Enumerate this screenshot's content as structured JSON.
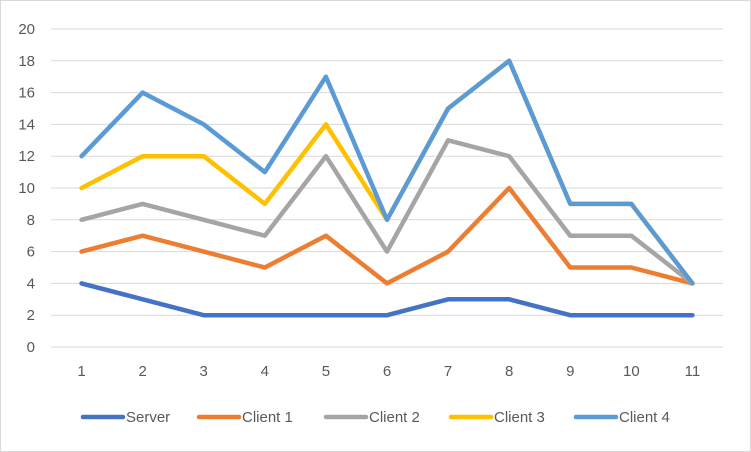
{
  "chart_data": {
    "type": "line",
    "categories": [
      "1",
      "2",
      "3",
      "4",
      "5",
      "6",
      "7",
      "8",
      "9",
      "10",
      "11"
    ],
    "ylim": [
      0,
      20
    ],
    "yticks": [
      0,
      2,
      4,
      6,
      8,
      10,
      12,
      14,
      16,
      18,
      20
    ],
    "grid": true,
    "legend": "bottom",
    "series": [
      {
        "name": "Server",
        "color": "#4472c4",
        "values": [
          4,
          3,
          2,
          2,
          2,
          2,
          3,
          3,
          2,
          2,
          2
        ]
      },
      {
        "name": "Client 1",
        "color": "#ed7d31",
        "values": [
          6,
          7,
          6,
          5,
          7,
          4,
          6,
          10,
          5,
          5,
          4
        ]
      },
      {
        "name": "Client 2",
        "color": "#a5a5a5",
        "values": [
          8,
          9,
          8,
          7,
          12,
          6,
          13,
          12,
          7,
          7,
          4
        ]
      },
      {
        "name": "Client 3",
        "color": "#ffc000",
        "values": [
          10,
          12,
          12,
          9,
          14,
          8,
          15,
          18,
          9,
          9,
          4
        ]
      },
      {
        "name": "Client 4",
        "color": "#5b9bd5",
        "values": [
          12,
          16,
          14,
          11,
          17,
          8,
          15,
          18,
          9,
          9,
          4
        ]
      }
    ]
  }
}
